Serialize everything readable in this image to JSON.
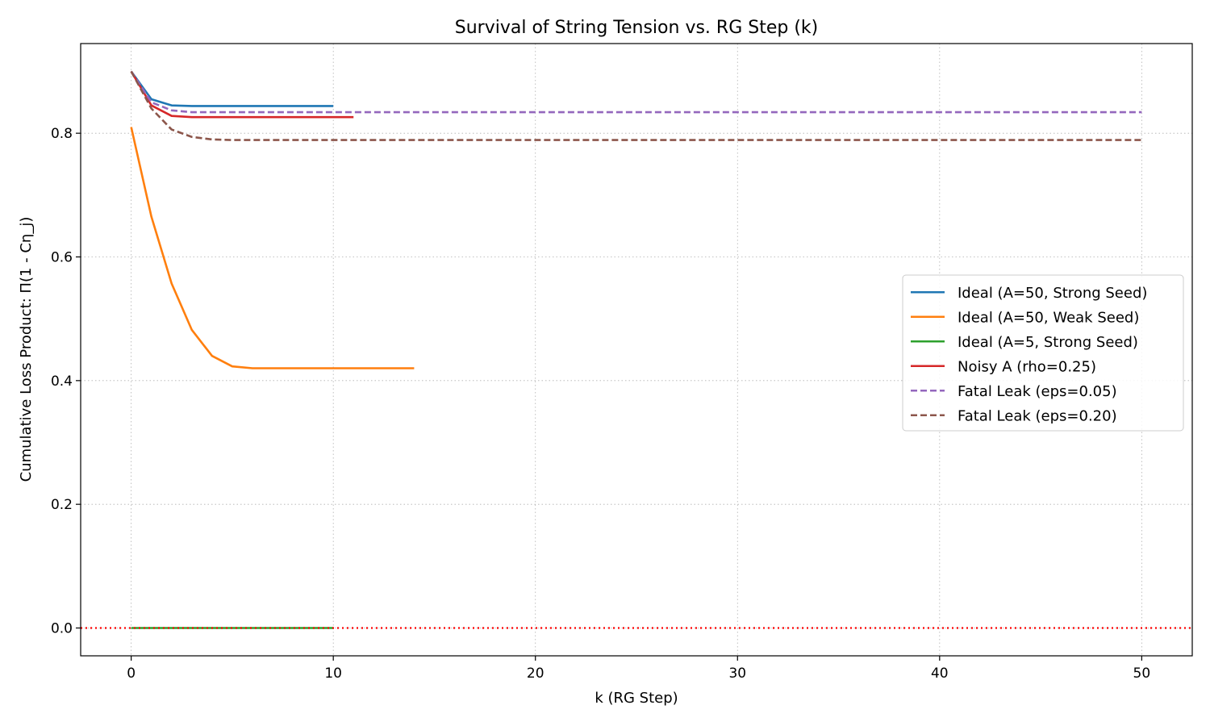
{
  "chart_data": {
    "type": "line",
    "title": "Survival of String Tension vs. RG Step (k)",
    "xlabel": "k (RG Step)",
    "ylabel": "Cumulative Loss Product: Π(1 - Cη_j)",
    "xlim": [
      -2.5,
      52.5
    ],
    "ylim": [
      -0.045,
      0.945
    ],
    "x_ticks": [
      0,
      10,
      20,
      30,
      40,
      50
    ],
    "y_ticks": [
      0.0,
      0.2,
      0.4,
      0.6,
      0.8
    ],
    "x_tick_labels": [
      "0",
      "10",
      "20",
      "30",
      "40",
      "50"
    ],
    "y_tick_labels": [
      "0.0",
      "0.2",
      "0.4",
      "0.6",
      "0.8"
    ],
    "grid": true,
    "legend_position": "center-right",
    "reference_line": {
      "y": 0.0,
      "color": "#ff0000",
      "style": "dotted"
    },
    "series": [
      {
        "name": "Ideal (A=50, Strong Seed)",
        "color": "#1f77b4",
        "style": "solid",
        "x": [
          0,
          1,
          2,
          3,
          4,
          5,
          6,
          7,
          8,
          9,
          10
        ],
        "y": [
          0.9,
          0.855,
          0.845,
          0.844,
          0.844,
          0.844,
          0.844,
          0.844,
          0.844,
          0.844,
          0.844
        ]
      },
      {
        "name": "Ideal (A=50, Weak Seed)",
        "color": "#ff7f0e",
        "style": "solid",
        "x": [
          0,
          1,
          2,
          3,
          4,
          5,
          6,
          7,
          8,
          9,
          10,
          11,
          12,
          13,
          14
        ],
        "y": [
          0.81,
          0.665,
          0.557,
          0.482,
          0.44,
          0.423,
          0.42,
          0.42,
          0.42,
          0.42,
          0.42,
          0.42,
          0.42,
          0.42,
          0.42
        ]
      },
      {
        "name": "Ideal (A=5, Strong Seed)",
        "color": "#2ca02c",
        "style": "solid",
        "x": [
          0,
          1,
          2,
          3,
          4,
          5,
          6,
          7,
          8,
          9,
          10
        ],
        "y": [
          0,
          0,
          0,
          0,
          0,
          0,
          0,
          0,
          0,
          0,
          0
        ]
      },
      {
        "name": "Noisy A (rho=0.25)",
        "color": "#d62728",
        "style": "solid",
        "x": [
          0,
          1,
          2,
          3,
          4,
          5,
          6,
          7,
          8,
          9,
          10,
          11
        ],
        "y": [
          0.9,
          0.845,
          0.828,
          0.826,
          0.826,
          0.826,
          0.826,
          0.826,
          0.826,
          0.826,
          0.826,
          0.826
        ]
      },
      {
        "name": "Fatal Leak (eps=0.05)",
        "color": "#9467bd",
        "style": "dashed",
        "x": [
          0,
          1,
          2,
          3,
          4,
          5,
          6,
          7,
          8,
          9,
          10,
          11,
          12,
          13,
          14,
          15,
          16,
          17,
          18,
          19,
          20,
          21,
          22,
          23,
          24,
          25,
          26,
          27,
          28,
          29,
          30,
          31,
          32,
          33,
          34,
          35,
          36,
          37,
          38,
          39,
          40,
          41,
          42,
          43,
          44,
          45,
          46,
          47,
          48,
          49,
          50
        ],
        "y": [
          0.9,
          0.85,
          0.837,
          0.834,
          0.834,
          0.834,
          0.834,
          0.834,
          0.834,
          0.834,
          0.834,
          0.834,
          0.834,
          0.834,
          0.834,
          0.834,
          0.834,
          0.834,
          0.834,
          0.834,
          0.834,
          0.834,
          0.834,
          0.834,
          0.834,
          0.834,
          0.834,
          0.834,
          0.834,
          0.834,
          0.834,
          0.834,
          0.834,
          0.834,
          0.834,
          0.834,
          0.834,
          0.834,
          0.834,
          0.834,
          0.834,
          0.834,
          0.834,
          0.834,
          0.834,
          0.834,
          0.834,
          0.834,
          0.834,
          0.834,
          0.834
        ]
      },
      {
        "name": "Fatal Leak (eps=0.20)",
        "color": "#8c564b",
        "style": "dashed",
        "x": [
          0,
          1,
          2,
          3,
          4,
          5,
          6,
          7,
          8,
          9,
          10,
          11,
          12,
          13,
          14,
          15,
          16,
          17,
          18,
          19,
          20,
          21,
          22,
          23,
          24,
          25,
          26,
          27,
          28,
          29,
          30,
          31,
          32,
          33,
          34,
          35,
          36,
          37,
          38,
          39,
          40,
          41,
          42,
          43,
          44,
          45,
          46,
          47,
          48,
          49,
          50
        ],
        "y": [
          0.9,
          0.84,
          0.806,
          0.794,
          0.79,
          0.789,
          0.789,
          0.789,
          0.789,
          0.789,
          0.789,
          0.789,
          0.789,
          0.789,
          0.789,
          0.789,
          0.789,
          0.789,
          0.789,
          0.789,
          0.789,
          0.789,
          0.789,
          0.789,
          0.789,
          0.789,
          0.789,
          0.789,
          0.789,
          0.789,
          0.789,
          0.789,
          0.789,
          0.789,
          0.789,
          0.789,
          0.789,
          0.789,
          0.789,
          0.789,
          0.789,
          0.789,
          0.789,
          0.789,
          0.789,
          0.789,
          0.789,
          0.789,
          0.789,
          0.789,
          0.789
        ]
      }
    ]
  }
}
